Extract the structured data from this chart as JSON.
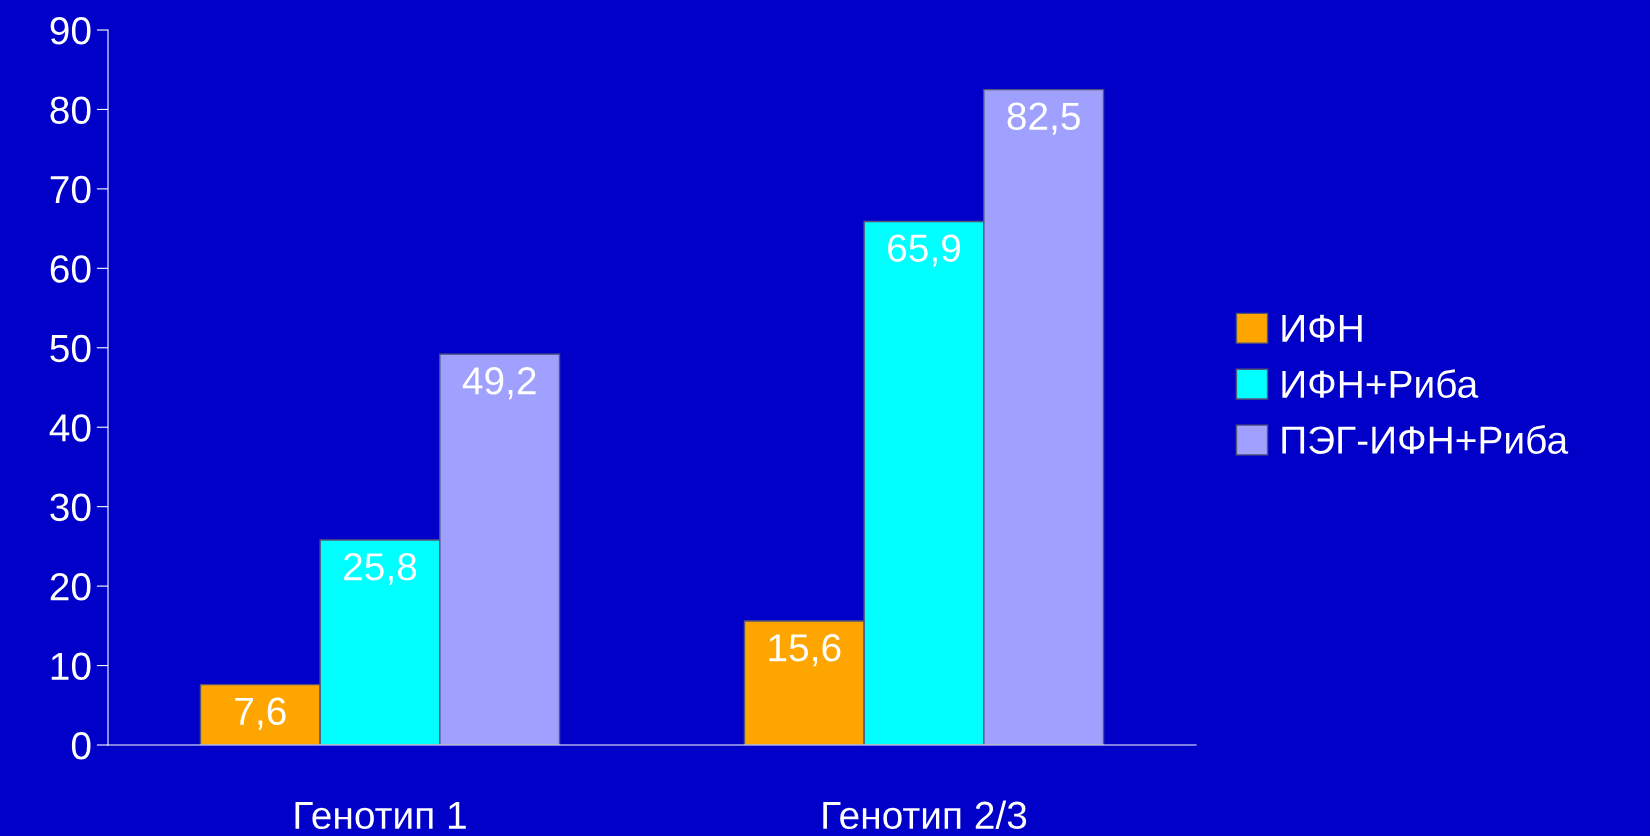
{
  "chart_data": {
    "type": "bar",
    "categories": [
      "Генотип 1",
      "Генотип 2/3"
    ],
    "series": [
      {
        "name": "ИФН",
        "color": "#ffa500",
        "values": [
          7.6,
          15.6
        ],
        "value_labels": [
          "7,6",
          "15,6"
        ]
      },
      {
        "name": "ИФН+Риба",
        "color": "#00ffff",
        "values": [
          25.8,
          65.9
        ],
        "value_labels": [
          "25,8",
          "65,9"
        ]
      },
      {
        "name": "ПЭГ-ИФН+Риба",
        "color": "#a0a0ff",
        "values": [
          49.2,
          82.5
        ],
        "value_labels": [
          "49,2",
          "82,5"
        ]
      }
    ],
    "ylim": [
      0,
      90
    ],
    "yticks": [
      0,
      10,
      20,
      30,
      40,
      50,
      60,
      70,
      80,
      90
    ],
    "grid": false,
    "legend": "right"
  }
}
